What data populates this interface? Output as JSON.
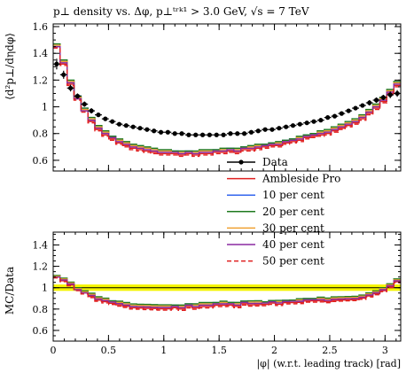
{
  "chart_data": [
    {
      "panel": "main",
      "type": "line",
      "title": "p⊥ density vs. Δφ, p⊥ᵗʳᵏ¹ > 3.0 GeV, √s = 7 TeV",
      "ylabel": "⟨d²p⊥/dηdφ⟩",
      "xlabel": "",
      "xlim": [
        0,
        3.14159
      ],
      "ylim": [
        0.52,
        1.62
      ],
      "xticks": [
        0,
        0.5,
        1,
        1.5,
        2,
        2.5,
        3
      ],
      "xtick_labels": [
        "",
        "",
        "",
        "",
        "",
        "",
        ""
      ],
      "yticks": [
        0.6,
        0.8,
        1,
        1.2,
        1.4,
        1.6
      ],
      "ytick_labels": [
        "0.6",
        "0.8",
        "1",
        "1.2",
        "1.4",
        "1.6"
      ],
      "bin_edges": [
        0,
        0.0628,
        0.1257,
        0.1885,
        0.2513,
        0.3142,
        0.377,
        0.4398,
        0.5027,
        0.5655,
        0.6283,
        0.6912,
        0.754,
        0.8168,
        0.8796,
        0.9425,
        1.0053,
        1.0681,
        1.131,
        1.1938,
        1.2566,
        1.3195,
        1.3823,
        1.4451,
        1.508,
        1.5708,
        1.6336,
        1.6965,
        1.7593,
        1.8221,
        1.885,
        1.9478,
        2.0106,
        2.0735,
        2.1363,
        2.1991,
        2.2619,
        2.3248,
        2.3876,
        2.4504,
        2.5133,
        2.5761,
        2.6389,
        2.7018,
        2.7646,
        2.8274,
        2.8903,
        2.9531,
        3.0159,
        3.0788,
        3.1416
      ],
      "legend_position": "right",
      "data": {
        "name": "Data",
        "color": "#000000",
        "values": [
          1.32,
          1.24,
          1.14,
          1.08,
          1.02,
          0.97,
          0.94,
          0.91,
          0.89,
          0.87,
          0.86,
          0.85,
          0.84,
          0.83,
          0.82,
          0.81,
          0.81,
          0.8,
          0.8,
          0.79,
          0.79,
          0.79,
          0.79,
          0.79,
          0.79,
          0.8,
          0.8,
          0.8,
          0.81,
          0.82,
          0.83,
          0.83,
          0.84,
          0.85,
          0.86,
          0.87,
          0.88,
          0.89,
          0.9,
          0.92,
          0.93,
          0.95,
          0.97,
          0.99,
          1.01,
          1.03,
          1.05,
          1.07,
          1.09,
          1.1
        ],
        "errors": [
          0.04,
          0.03,
          0.025,
          0.02,
          0.02,
          0.02,
          0.015,
          0.015,
          0.015,
          0.015,
          0.015,
          0.015,
          0.015,
          0.015,
          0.015,
          0.015,
          0.015,
          0.015,
          0.015,
          0.015,
          0.015,
          0.015,
          0.015,
          0.015,
          0.015,
          0.015,
          0.015,
          0.015,
          0.015,
          0.015,
          0.015,
          0.015,
          0.015,
          0.015,
          0.015,
          0.015,
          0.015,
          0.015,
          0.015,
          0.015,
          0.015,
          0.015,
          0.015,
          0.015,
          0.015,
          0.02,
          0.02,
          0.02,
          0.025,
          0.025
        ]
      },
      "series": [
        {
          "name": "Ambleside Pro",
          "color": "#e02020",
          "dashed": false,
          "values": [
            1.45,
            1.32,
            1.17,
            1.06,
            0.97,
            0.89,
            0.83,
            0.79,
            0.76,
            0.73,
            0.71,
            0.69,
            0.68,
            0.67,
            0.66,
            0.65,
            0.65,
            0.65,
            0.64,
            0.65,
            0.64,
            0.65,
            0.65,
            0.66,
            0.66,
            0.67,
            0.66,
            0.68,
            0.68,
            0.69,
            0.7,
            0.71,
            0.71,
            0.73,
            0.74,
            0.75,
            0.77,
            0.78,
            0.79,
            0.8,
            0.82,
            0.84,
            0.86,
            0.88,
            0.91,
            0.95,
            0.99,
            1.04,
            1.1,
            1.16
          ]
        },
        {
          "name": "10 per cent",
          "color": "#3366ee",
          "dashed": false,
          "values": [
            1.46,
            1.34,
            1.19,
            1.08,
            0.99,
            0.91,
            0.85,
            0.81,
            0.78,
            0.75,
            0.73,
            0.71,
            0.7,
            0.69,
            0.68,
            0.67,
            0.67,
            0.67,
            0.66,
            0.67,
            0.66,
            0.67,
            0.67,
            0.68,
            0.68,
            0.69,
            0.68,
            0.7,
            0.7,
            0.71,
            0.72,
            0.73,
            0.73,
            0.75,
            0.76,
            0.77,
            0.79,
            0.8,
            0.81,
            0.82,
            0.84,
            0.86,
            0.88,
            0.9,
            0.93,
            0.97,
            1.01,
            1.06,
            1.12,
            1.18
          ]
        },
        {
          "name": "20 per cent",
          "color": "#1e7a1e",
          "dashed": false,
          "values": [
            1.47,
            1.35,
            1.2,
            1.08,
            0.99,
            0.92,
            0.86,
            0.82,
            0.78,
            0.76,
            0.74,
            0.72,
            0.71,
            0.7,
            0.69,
            0.68,
            0.68,
            0.67,
            0.67,
            0.67,
            0.67,
            0.68,
            0.68,
            0.68,
            0.69,
            0.69,
            0.69,
            0.7,
            0.71,
            0.72,
            0.72,
            0.73,
            0.74,
            0.75,
            0.76,
            0.78,
            0.79,
            0.8,
            0.82,
            0.83,
            0.85,
            0.87,
            0.89,
            0.91,
            0.94,
            0.98,
            1.02,
            1.07,
            1.13,
            1.19
          ]
        },
        {
          "name": "30 per cent",
          "color": "#f0a030",
          "dashed": false,
          "values": [
            1.46,
            1.34,
            1.19,
            1.07,
            0.98,
            0.91,
            0.85,
            0.81,
            0.77,
            0.75,
            0.73,
            0.71,
            0.7,
            0.69,
            0.68,
            0.67,
            0.67,
            0.66,
            0.66,
            0.66,
            0.66,
            0.67,
            0.67,
            0.67,
            0.68,
            0.68,
            0.68,
            0.69,
            0.7,
            0.71,
            0.71,
            0.72,
            0.73,
            0.74,
            0.75,
            0.77,
            0.78,
            0.79,
            0.81,
            0.82,
            0.84,
            0.86,
            0.88,
            0.9,
            0.93,
            0.97,
            1.01,
            1.06,
            1.12,
            1.18
          ]
        },
        {
          "name": "40 per cent",
          "color": "#8a2aa0",
          "dashed": false,
          "values": [
            1.45,
            1.33,
            1.18,
            1.06,
            0.97,
            0.9,
            0.84,
            0.8,
            0.77,
            0.74,
            0.72,
            0.7,
            0.69,
            0.68,
            0.67,
            0.66,
            0.66,
            0.66,
            0.65,
            0.66,
            0.65,
            0.66,
            0.66,
            0.67,
            0.67,
            0.68,
            0.67,
            0.69,
            0.69,
            0.7,
            0.71,
            0.72,
            0.72,
            0.74,
            0.75,
            0.76,
            0.78,
            0.79,
            0.8,
            0.81,
            0.83,
            0.85,
            0.87,
            0.89,
            0.92,
            0.96,
            1.0,
            1.05,
            1.11,
            1.17
          ]
        },
        {
          "name": "50 per cent",
          "color": "#e02020",
          "dashed": true,
          "values": [
            1.44,
            1.31,
            1.16,
            1.05,
            0.96,
            0.88,
            0.82,
            0.78,
            0.75,
            0.72,
            0.7,
            0.68,
            0.67,
            0.66,
            0.65,
            0.64,
            0.64,
            0.64,
            0.63,
            0.64,
            0.63,
            0.64,
            0.64,
            0.65,
            0.65,
            0.66,
            0.65,
            0.67,
            0.67,
            0.68,
            0.69,
            0.7,
            0.7,
            0.72,
            0.73,
            0.74,
            0.76,
            0.77,
            0.78,
            0.79,
            0.81,
            0.83,
            0.85,
            0.87,
            0.9,
            0.94,
            0.98,
            1.03,
            1.09,
            1.15
          ]
        }
      ]
    },
    {
      "panel": "ratio",
      "type": "line",
      "title": "",
      "ylabel": "MC/Data",
      "xlabel": "|φ| (w.r.t. leading track) [rad]",
      "xlim": [
        0,
        3.14159
      ],
      "ylim": [
        0.5,
        1.52
      ],
      "xticks": [
        0,
        0.5,
        1,
        1.5,
        2,
        2.5,
        3
      ],
      "xtick_labels": [
        "0",
        "0.5",
        "1",
        "1.5",
        "2",
        "2.5",
        "3"
      ],
      "yticks": [
        0.6,
        0.8,
        1,
        1.2,
        1.4
      ],
      "ytick_labels": [
        "0.6",
        "0.8",
        "1",
        "1.2",
        "1.4"
      ],
      "band": {
        "low": 0.97,
        "high": 1.03,
        "color": "#f5f500"
      },
      "reference": 1,
      "note": "ratio series = model values / data values per bin"
    }
  ],
  "legend": {
    "data_label": "Data",
    "entries": [
      "Ambleside Pro",
      "10 per cent",
      "20 per cent",
      "30 per cent",
      "40 per cent",
      "50 per cent"
    ]
  }
}
